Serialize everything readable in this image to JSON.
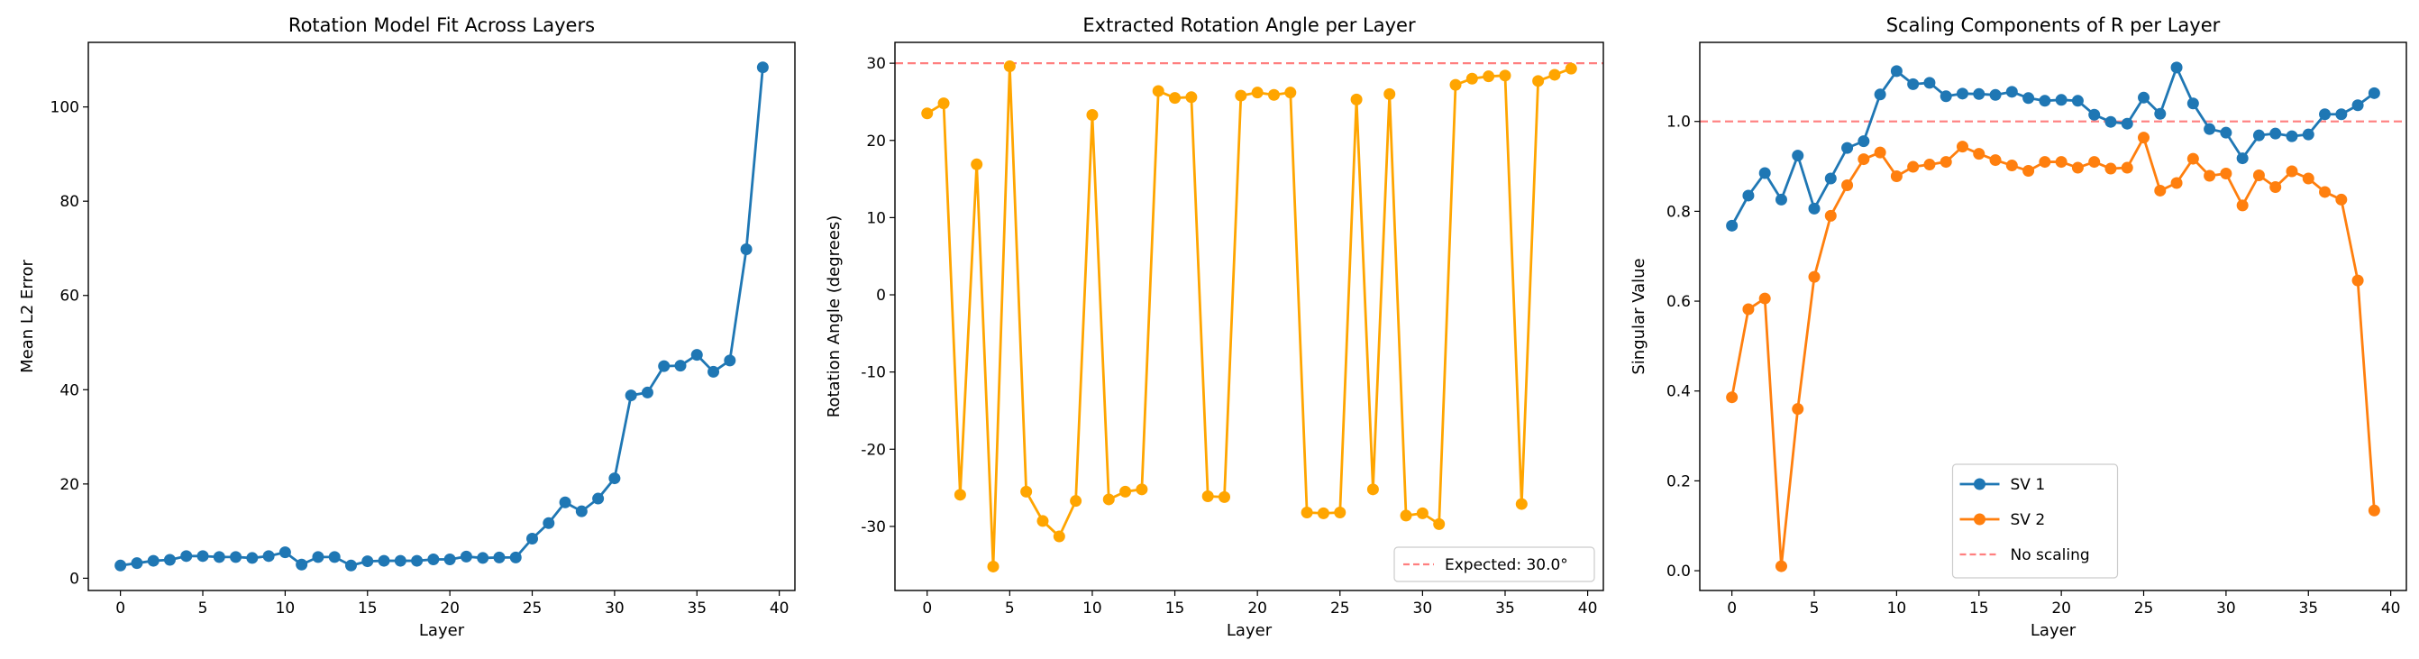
{
  "chart_data": [
    {
      "type": "line",
      "title": "Rotation Model Fit Across Layers",
      "xlabel": "Layer",
      "ylabel": "Mean L2 Error",
      "xlim": [
        -1.95,
        40.95
      ],
      "ylim": [
        -2.6,
        113.7
      ],
      "xticks": [
        0,
        5,
        10,
        15,
        20,
        25,
        30,
        35,
        40
      ],
      "yticks": [
        0,
        20,
        40,
        60,
        80,
        100
      ],
      "grid": false,
      "x": [
        0,
        1,
        2,
        3,
        4,
        5,
        6,
        7,
        8,
        9,
        10,
        11,
        12,
        13,
        14,
        15,
        16,
        17,
        18,
        19,
        20,
        21,
        22,
        23,
        24,
        25,
        26,
        27,
        28,
        29,
        30,
        31,
        32,
        33,
        34,
        35,
        36,
        37,
        38,
        39
      ],
      "series": [
        {
          "color": "#1f77b4",
          "marker": "circle",
          "values": [
            2.7,
            3.2,
            3.7,
            3.9,
            4.7,
            4.7,
            4.5,
            4.5,
            4.3,
            4.7,
            5.5,
            2.9,
            4.5,
            4.5,
            2.7,
            3.6,
            3.7,
            3.7,
            3.7,
            4.0,
            4.0,
            4.6,
            4.3,
            4.4,
            4.4,
            8.4,
            11.7,
            16.1,
            14.2,
            16.9,
            21.2,
            38.8,
            39.4,
            45.0,
            45.1,
            47.4,
            43.8,
            46.2,
            69.8,
            108.4
          ]
        }
      ],
      "reference_lines": [],
      "legend": null
    },
    {
      "type": "line",
      "title": "Extracted Rotation Angle per Layer",
      "xlabel": "Layer",
      "ylabel": "Rotation Angle (degrees)",
      "xlim": [
        -1.95,
        40.95
      ],
      "ylim": [
        -38.3,
        32.7
      ],
      "xticks": [
        0,
        5,
        10,
        15,
        20,
        25,
        30,
        35,
        40
      ],
      "yticks": [
        -30,
        -20,
        -10,
        0,
        10,
        20,
        30
      ],
      "grid": false,
      "x": [
        0,
        1,
        2,
        3,
        4,
        5,
        6,
        7,
        8,
        9,
        10,
        11,
        12,
        13,
        14,
        15,
        16,
        17,
        18,
        19,
        20,
        21,
        22,
        23,
        24,
        25,
        26,
        27,
        28,
        29,
        30,
        31,
        32,
        33,
        34,
        35,
        36,
        37,
        38,
        39
      ],
      "series": [
        {
          "color": "#ffa500",
          "marker": "circle",
          "values": [
            23.5,
            24.8,
            -25.9,
            16.9,
            -35.2,
            29.6,
            -25.5,
            -29.3,
            -31.3,
            -26.7,
            23.3,
            -26.5,
            -25.5,
            -25.2,
            26.4,
            25.5,
            25.6,
            -26.1,
            -26.2,
            25.8,
            26.2,
            25.9,
            26.2,
            -28.2,
            -28.3,
            -28.2,
            25.3,
            -25.2,
            26.0,
            -28.6,
            -28.3,
            -29.7,
            27.2,
            28.0,
            28.3,
            28.4,
            -27.1,
            27.7,
            28.5,
            29.3
          ]
        }
      ],
      "reference_lines": [
        {
          "y": 30,
          "color": "#ff7f7f",
          "style": "dashed",
          "name": "Expected: 30.0°"
        }
      ],
      "legend": "bottom-right"
    },
    {
      "type": "line",
      "title": "Scaling Components of R per Layer",
      "xlabel": "Layer",
      "ylabel": "Singular Value",
      "xlim": [
        -1.95,
        40.95
      ],
      "ylim": [
        -0.044,
        1.176
      ],
      "xticks": [
        0,
        5,
        10,
        15,
        20,
        25,
        30,
        35,
        40
      ],
      "yticks": [
        "0.0",
        "0.2",
        "0.4",
        "0.6",
        "0.8",
        "1.0"
      ],
      "grid": false,
      "x": [
        0,
        1,
        2,
        3,
        4,
        5,
        6,
        7,
        8,
        9,
        10,
        11,
        12,
        13,
        14,
        15,
        16,
        17,
        18,
        19,
        20,
        21,
        22,
        23,
        24,
        25,
        26,
        27,
        28,
        29,
        30,
        31,
        32,
        33,
        34,
        35,
        36,
        37,
        38,
        39
      ],
      "series": [
        {
          "name": "SV 1",
          "color": "#1f77b4",
          "marker": "circle",
          "values": [
            0.768,
            0.835,
            0.885,
            0.826,
            0.924,
            0.806,
            0.873,
            0.941,
            0.956,
            1.06,
            1.112,
            1.083,
            1.086,
            1.056,
            1.062,
            1.061,
            1.059,
            1.066,
            1.052,
            1.046,
            1.048,
            1.046,
            1.015,
            0.999,
            0.995,
            1.053,
            1.017,
            1.12,
            1.04,
            0.983,
            0.975,
            0.918,
            0.969,
            0.973,
            0.967,
            0.971,
            1.016,
            1.016,
            1.036,
            1.063
          ]
        },
        {
          "name": "SV 2",
          "color": "#ff7f0e",
          "marker": "circle",
          "values": [
            0.386,
            0.582,
            0.606,
            0.01,
            0.36,
            0.654,
            0.79,
            0.858,
            0.916,
            0.931,
            0.878,
            0.899,
            0.904,
            0.91,
            0.944,
            0.928,
            0.914,
            0.902,
            0.89,
            0.91,
            0.91,
            0.897,
            0.91,
            0.895,
            0.897,
            0.964,
            0.846,
            0.863,
            0.917,
            0.879,
            0.884,
            0.813,
            0.88,
            0.854,
            0.889,
            0.873,
            0.843,
            0.826,
            0.646,
            0.134
          ]
        }
      ],
      "reference_lines": [
        {
          "y": 1.0,
          "color": "#ff7f7f",
          "style": "dashed",
          "name": "No scaling"
        }
      ],
      "legend": "bottom-center"
    }
  ]
}
